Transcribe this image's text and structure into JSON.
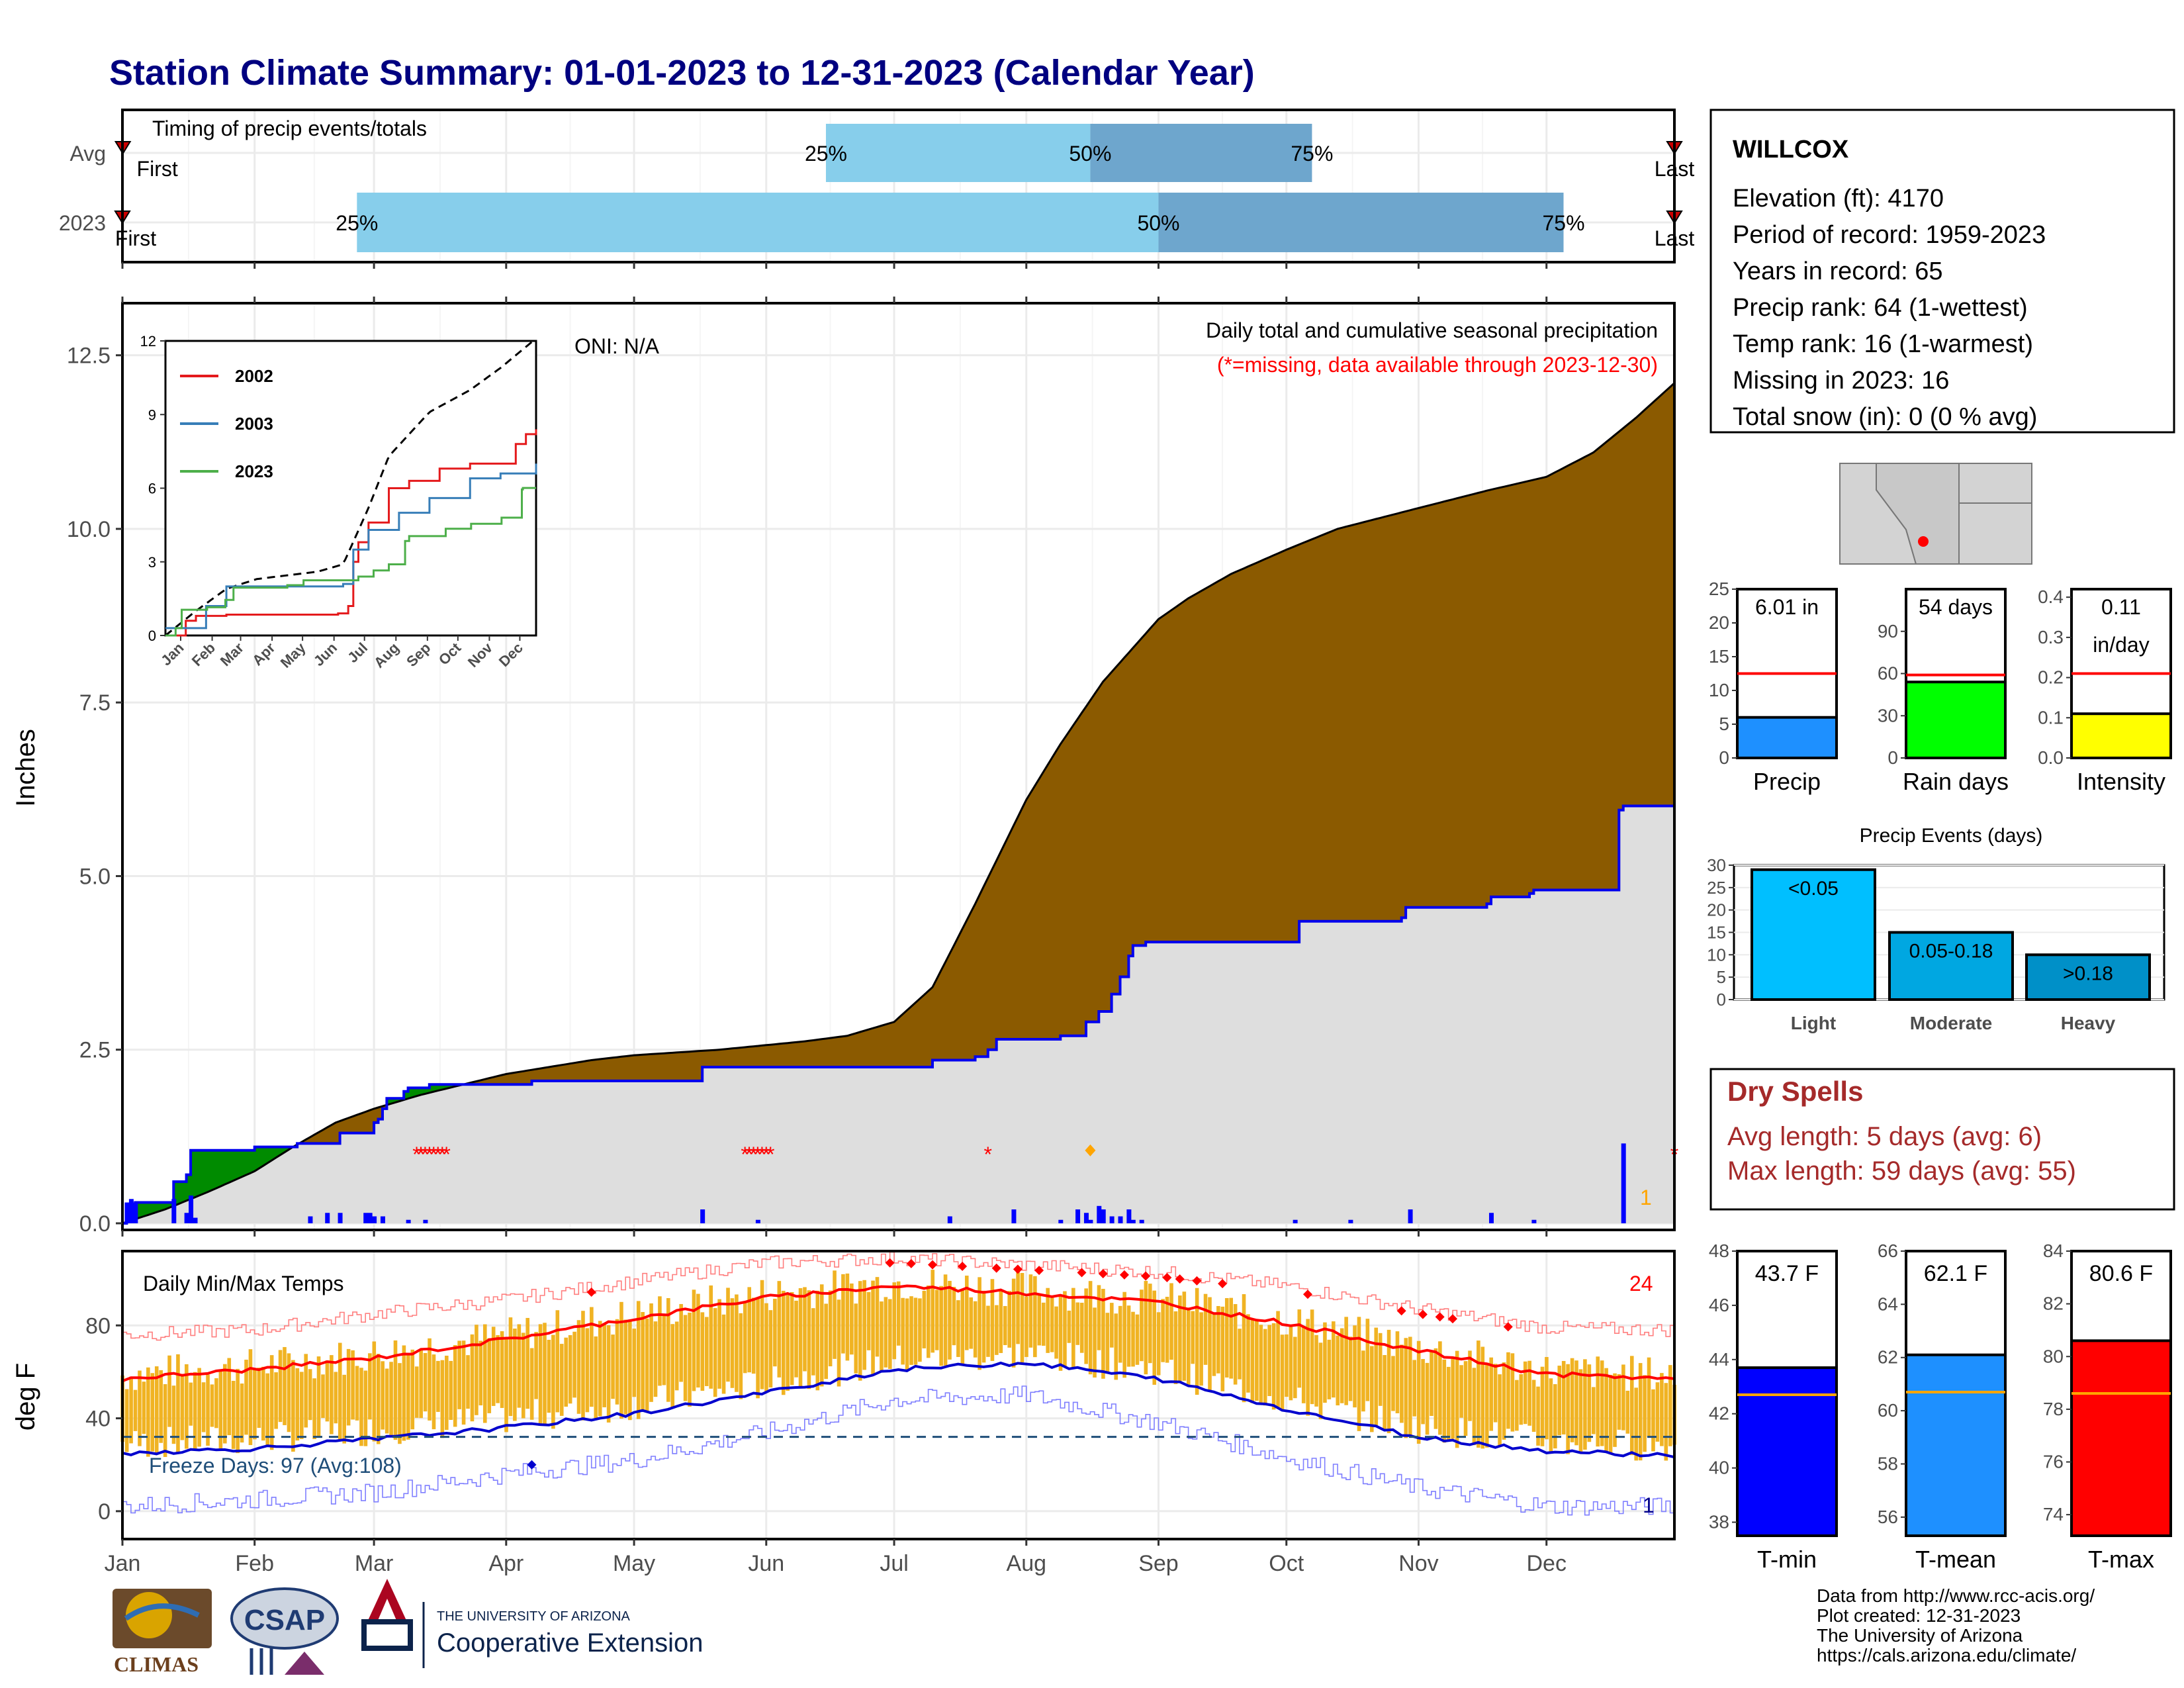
{
  "title": "Station Climate Summary: 01-01-2023 to 12-31-2023 (Calendar Year)",
  "timing": {
    "label": "Timing of precip events/totals",
    "rows": [
      {
        "name": "Avg",
        "first_label": "First",
        "last_label": "Last",
        "first": 0.1,
        "last": 364,
        "p25": 165,
        "p50": 227,
        "p75": 279
      },
      {
        "name": "2023",
        "first_label": "First",
        "last_label": "Last",
        "first": 0,
        "last": 364,
        "p25": 55,
        "p50": 243,
        "p75": 338
      }
    ],
    "pct_labels": [
      "25%",
      "50%",
      "75%"
    ]
  },
  "precip_panel": {
    "ylabel": "Inches",
    "yticks": [
      "0.0",
      "2.5",
      "5.0",
      "7.5",
      "10.0",
      "12.5"
    ],
    "ylim": [
      0,
      13.25
    ],
    "oni": "ONI: N/A",
    "note_title": "Daily total and cumulative seasonal precipitation",
    "note_missing": "(*=missing, data available through 2023-12-30)",
    "count_label": "1"
  },
  "temp_panel": {
    "ylabel": "deg F",
    "yticks": [
      "0",
      "40",
      "80"
    ],
    "label": "Daily Min/Max Temps",
    "count_max": "24",
    "count_min": "1",
    "freeze": "Freeze Days: 97 (Avg:108)"
  },
  "months": [
    "Jan",
    "Feb",
    "Mar",
    "Apr",
    "May",
    "Jun",
    "Jul",
    "Aug",
    "Sep",
    "Oct",
    "Nov",
    "Dec"
  ],
  "inset": {
    "yticks": [
      "0",
      "3",
      "6",
      "9",
      "12"
    ],
    "months": [
      "Jan",
      "Feb",
      "Mar",
      "Apr",
      "May",
      "Jun",
      "Jul",
      "Aug",
      "Sep",
      "Oct",
      "Nov",
      "Dec"
    ],
    "legend": [
      {
        "name": "2002",
        "color": "#e41a1c"
      },
      {
        "name": "2003",
        "color": "#377eb8"
      },
      {
        "name": "2023",
        "color": "#4daf4a"
      }
    ]
  },
  "station": {
    "name": "WILLCOX",
    "lines": [
      "Elevation (ft): 4170",
      "Period of record: 1959-2023",
      "Years in record: 65",
      "Precip rank: 64 (1-wettest)",
      "Temp rank: 16 (1-warmest)",
      "Missing in 2023: 16",
      "Total snow (in): 0 (0 % avg)"
    ]
  },
  "gauges": [
    {
      "label": "Precip",
      "value_text": "6.01 in",
      "value_text2": "",
      "value": 6.01,
      "avg": 12.5,
      "ymax": 25,
      "ticks": [
        "0",
        "5",
        "10",
        "15",
        "20",
        "25"
      ],
      "color": "#1e90ff"
    },
    {
      "label": "Rain days",
      "value_text": "54 days",
      "value_text2": "",
      "value": 54,
      "avg": 59,
      "ymax": 120,
      "ticks": [
        "0",
        "30",
        "60",
        "90"
      ],
      "color": "#00ff00"
    },
    {
      "label": "Intensity",
      "value_text": "0.11",
      "value_text2": "in/day",
      "value": 0.11,
      "avg": 0.21,
      "ymax": 0.42,
      "ticks": [
        "0.0",
        "0.1",
        "0.2",
        "0.3",
        "0.4"
      ],
      "color": "#ffff00"
    }
  ],
  "precip_events": {
    "title": "Precip Events (days)",
    "ticks": [
      "0",
      "5",
      "10",
      "15",
      "20",
      "25",
      "30"
    ],
    "categories": [
      "Light",
      "Moderate",
      "Heavy"
    ],
    "bar_labels": [
      "<0.05",
      "0.05-0.18",
      ">0.18"
    ],
    "values": [
      29,
      15,
      10
    ],
    "colors": [
      "#00bfff",
      "#00a7e1",
      "#0090c8"
    ]
  },
  "dry_spells": {
    "title": "Dry Spells",
    "avg": "Avg length: 5 days (avg: 6)",
    "max": "Max length: 59 days (avg: 55)"
  },
  "temp_gauges": [
    {
      "label": "T-min",
      "value_text": "43.7 F",
      "value": 43.7,
      "avg": 42.7,
      "ymin": 37.5,
      "ymax": 48,
      "ticks": [
        "38",
        "40",
        "42",
        "44",
        "46",
        "48"
      ],
      "color": "#0000ff"
    },
    {
      "label": "T-mean",
      "value_text": "62.1 F",
      "value": 62.1,
      "avg": 60.7,
      "ymin": 55.3,
      "ymax": 66,
      "ticks": [
        "56",
        "58",
        "60",
        "62",
        "64",
        "66"
      ],
      "color": "#1e90ff"
    },
    {
      "label": "T-max",
      "value_text": "80.6 F",
      "value": 80.6,
      "avg": 78.6,
      "ymin": 73.2,
      "ymax": 84,
      "ticks": [
        "74",
        "76",
        "78",
        "80",
        "82",
        "84"
      ],
      "color": "#ff0000"
    }
  ],
  "credits": [
    "Data from http://www.rcc-acis.org/",
    "Plot created: 12-31-2023",
    "The University of Arizona",
    "https://cals.arizona.edu/climate/"
  ],
  "logos": {
    "climas": "CLIMAS",
    "csap": "CSAP",
    "ua_small": "THE UNIVERSITY OF ARIZONA",
    "ua_big": "Cooperative Extension"
  },
  "chart_data": [
    {
      "type": "area",
      "title": "Daily total and cumulative seasonal precipitation",
      "ylabel": "Inches",
      "ylim": [
        0,
        13.25
      ],
      "x_months": [
        "Jan",
        "Feb",
        "Mar",
        "Apr",
        "May",
        "Jun",
        "Jul",
        "Aug",
        "Sep",
        "Oct",
        "Nov",
        "Dec"
      ],
      "series": [
        {
          "name": "cumulative average",
          "x": [
            0,
            10,
            20,
            31,
            40,
            50,
            59,
            70,
            80,
            90,
            100,
            110,
            120,
            140,
            160,
            170,
            181,
            190,
            200,
            212,
            220,
            230,
            243,
            250,
            260,
            273,
            285,
            304,
            320,
            334,
            345,
            355,
            364
          ],
          "values": [
            0,
            0.2,
            0.45,
            0.75,
            1.1,
            1.45,
            1.65,
            1.85,
            2.0,
            2.15,
            2.25,
            2.35,
            2.42,
            2.5,
            2.62,
            2.7,
            2.9,
            3.4,
            4.6,
            6.1,
            6.9,
            7.8,
            8.7,
            9.0,
            9.35,
            9.7,
            10.0,
            10.3,
            10.55,
            10.75,
            11.1,
            11.6,
            12.1
          ]
        },
        {
          "name": "cumulative 2023",
          "x": [
            0,
            1,
            3,
            10,
            12,
            15,
            16,
            30,
            31,
            40,
            41,
            50,
            51,
            58,
            59,
            60,
            61,
            62,
            66,
            67,
            70,
            72,
            95,
            96,
            120,
            135,
            136,
            140,
            180,
            190,
            200,
            203,
            205,
            220,
            226,
            229,
            232,
            234,
            236,
            237,
            239,
            240,
            275,
            276,
            300,
            301,
            320,
            321,
            330,
            331,
            350,
            351,
            352,
            364
          ],
          "values": [
            0,
            0.1,
            0.3,
            0.3,
            0.6,
            0.7,
            1.05,
            1.05,
            1.1,
            1.1,
            1.15,
            1.15,
            1.3,
            1.3,
            1.45,
            1.5,
            1.65,
            1.8,
            1.9,
            1.95,
            1.95,
            2.0,
            2.0,
            2.05,
            2.05,
            2.05,
            2.25,
            2.25,
            2.25,
            2.35,
            2.4,
            2.5,
            2.65,
            2.7,
            2.9,
            3.05,
            3.3,
            3.55,
            3.85,
            4.0,
            4.0,
            4.05,
            4.05,
            4.35,
            4.4,
            4.55,
            4.6,
            4.7,
            4.75,
            4.8,
            4.8,
            5.95,
            6.01,
            6.01
          ]
        }
      ],
      "daily_bars": {
        "x": [
          1,
          2,
          3,
          12,
          15,
          16,
          17,
          44,
          48,
          51,
          57,
          58,
          59,
          61,
          67,
          71,
          136,
          149,
          194,
          209,
          220,
          224,
          226,
          227,
          229,
          230,
          232,
          234,
          236,
          237,
          239,
          275,
          288,
          302,
          321,
          331,
          352
        ],
        "values": [
          0.3,
          0.35,
          0.3,
          0.35,
          0.15,
          0.4,
          0.08,
          0.1,
          0.15,
          0.15,
          0.15,
          0.15,
          0.1,
          0.1,
          0.05,
          0.05,
          0.2,
          0.05,
          0.1,
          0.2,
          0.05,
          0.2,
          0.15,
          0.05,
          0.25,
          0.2,
          0.1,
          0.1,
          0.2,
          0.05,
          0.05,
          0.05,
          0.05,
          0.2,
          0.15,
          0.05,
          1.15
        ]
      },
      "missing_days": [
        69,
        70,
        71,
        72,
        73,
        74,
        75,
        76,
        146,
        147,
        148,
        149,
        150,
        151,
        152,
        203,
        364
      ]
    },
    {
      "type": "line",
      "title": "Daily Min/Max Temps",
      "ylabel": "deg F",
      "ylim": [
        -12,
        112
      ],
      "x_months": [
        "Jan",
        "Feb",
        "Mar",
        "Apr",
        "May",
        "Jun",
        "Jul",
        "Aug",
        "Sep",
        "Oct",
        "Nov",
        "Dec"
      ],
      "series": [
        {
          "name": "average max",
          "x": [
            0,
            31,
            59,
            90,
            120,
            151,
            181,
            212,
            243,
            273,
            304,
            334,
            364
          ],
          "values": [
            57,
            61,
            66,
            74,
            83,
            92,
            97,
            94,
            90,
            81,
            69,
            59,
            57
          ]
        },
        {
          "name": "average min",
          "x": [
            0,
            31,
            59,
            90,
            120,
            151,
            181,
            212,
            243,
            273,
            304,
            334,
            364
          ],
          "values": [
            25,
            27,
            31,
            36,
            42,
            51,
            61,
            64,
            57,
            44,
            32,
            26,
            24
          ]
        },
        {
          "name": "record max",
          "x": [
            0,
            31,
            59,
            90,
            120,
            151,
            181,
            212,
            243,
            273,
            304,
            334,
            364
          ],
          "values": [
            76,
            78,
            85,
            91,
            99,
            107,
            109,
            106,
            103,
            97,
            87,
            79,
            78
          ]
        },
        {
          "name": "record min",
          "x": [
            0,
            31,
            59,
            90,
            120,
            151,
            181,
            212,
            243,
            273,
            304,
            334,
            364
          ],
          "values": [
            2,
            5,
            8,
            16,
            22,
            34,
            48,
            50,
            38,
            23,
            10,
            2,
            2
          ]
        }
      ],
      "freeze_line": 32
    },
    {
      "type": "line",
      "title": "",
      "x_months": [
        "Jan",
        "Feb",
        "Mar",
        "Apr",
        "May",
        "Jun",
        "Jul",
        "Aug",
        "Sep",
        "Oct",
        "Nov",
        "Dec"
      ],
      "ylim": [
        0,
        12
      ],
      "series": [
        {
          "name": "average",
          "x": [
            0,
            30,
            60,
            90,
            120,
            150,
            175,
            200,
            220,
            260,
            300,
            330,
            365
          ],
          "values": [
            0,
            1,
            1.9,
            2.3,
            2.45,
            2.6,
            2.9,
            5.2,
            7.3,
            9.1,
            10.0,
            10.9,
            12.1
          ]
        },
        {
          "name": "2002",
          "x": [
            0,
            20,
            30,
            60,
            90,
            120,
            150,
            170,
            180,
            185,
            190,
            200,
            220,
            240,
            270,
            300,
            330,
            345,
            355,
            365
          ],
          "values": [
            0,
            0.6,
            0.8,
            0.85,
            0.85,
            0.85,
            0.85,
            0.9,
            1.2,
            3.0,
            3.8,
            4.6,
            6.0,
            6.3,
            6.8,
            7.0,
            7.0,
            7.8,
            8.2,
            8.4
          ]
        },
        {
          "name": "2003",
          "x": [
            0,
            20,
            40,
            60,
            90,
            120,
            150,
            175,
            185,
            200,
            230,
            260,
            300,
            330,
            365
          ],
          "values": [
            0.3,
            0.3,
            1.2,
            2.0,
            2.0,
            2.0,
            2.0,
            2.1,
            3.5,
            4.3,
            5.0,
            5.6,
            6.4,
            6.6,
            7.0
          ]
        },
        {
          "name": "2023",
          "x": [
            0,
            10,
            16,
            41,
            59,
            67,
            120,
            136,
            180,
            190,
            205,
            220,
            236,
            240,
            276,
            301,
            331,
            351,
            352,
            365
          ],
          "values": [
            0,
            0.3,
            1.05,
            1.15,
            1.45,
            1.95,
            2.05,
            2.25,
            2.25,
            2.4,
            2.65,
            2.9,
            3.85,
            4.05,
            4.35,
            4.55,
            4.8,
            5.95,
            6.01,
            6.01
          ]
        }
      ]
    }
  ]
}
